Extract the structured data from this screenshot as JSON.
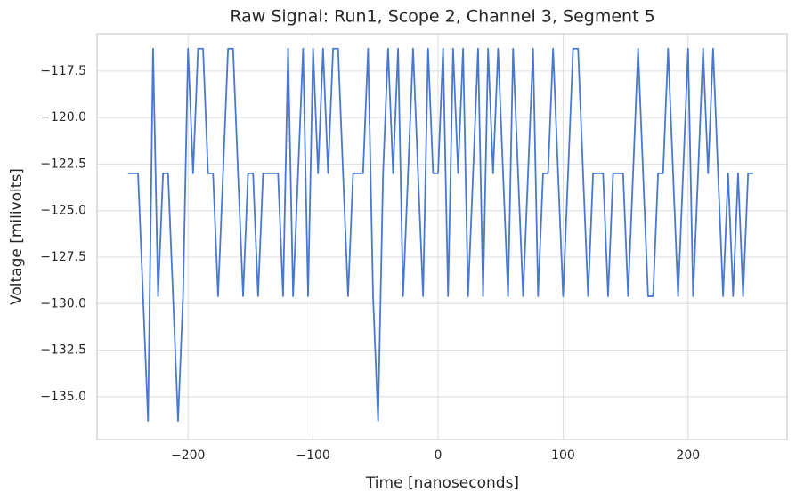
{
  "chart_data": {
    "type": "line",
    "title": "Raw Signal: Run1, Scope 2, Channel 3, Segment 5",
    "x_label": "Time [nanoseconds]",
    "y_label": "Voltage [milivolts]",
    "x": [
      -248,
      -244,
      -240,
      -236,
      -232,
      -228,
      -224,
      -220,
      -216,
      -212,
      -208,
      -204,
      -200,
      -196,
      -192,
      -188,
      -184,
      -180,
      -176,
      -172,
      -168,
      -164,
      -160,
      -156,
      -152,
      -148,
      -144,
      -140,
      -136,
      -132,
      -128,
      -124,
      -120,
      -116,
      -112,
      -108,
      -104,
      -100,
      -96,
      -92,
      -88,
      -84,
      -80,
      -76,
      -72,
      -68,
      -64,
      -60,
      -56,
      -52,
      -48,
      -44,
      -40,
      -36,
      -32,
      -28,
      -24,
      -20,
      -16,
      -12,
      -8,
      -4,
      0,
      4,
      8,
      12,
      16,
      20,
      24,
      28,
      32,
      36,
      40,
      44,
      48,
      52,
      56,
      60,
      64,
      68,
      72,
      76,
      80,
      84,
      88,
      92,
      96,
      100,
      104,
      108,
      112,
      116,
      120,
      124,
      128,
      132,
      136,
      140,
      144,
      148,
      152,
      156,
      160,
      164,
      168,
      172,
      176,
      180,
      184,
      188,
      192,
      196,
      200,
      204,
      208,
      212,
      216,
      220,
      224,
      228,
      232,
      236,
      240,
      244,
      248,
      252
    ],
    "series": [
      {
        "name": "signal",
        "color": "#4878d0",
        "values": [
          -123,
          -123,
          -123,
          -129.6,
          -136.3,
          -116.3,
          -129.6,
          -123,
          -123,
          -129.6,
          -136.3,
          -129.6,
          -116.3,
          -123,
          -116.3,
          -116.3,
          -123,
          -123,
          -129.6,
          -123,
          -116.3,
          -116.3,
          -123,
          -129.6,
          -123,
          -123,
          -129.6,
          -123,
          -123,
          -123,
          -123,
          -129.6,
          -116.3,
          -129.6,
          -123,
          -116.3,
          -129.6,
          -116.3,
          -123,
          -116.3,
          -123,
          -116.3,
          -116.3,
          -123,
          -129.6,
          -123,
          -123,
          -123,
          -116.3,
          -129.6,
          -136.3,
          -123,
          -116.3,
          -123,
          -116.3,
          -129.6,
          -123,
          -116.3,
          -123,
          -129.6,
          -116.3,
          -123,
          -123,
          -116.3,
          -129.6,
          -116.3,
          -123,
          -116.3,
          -129.6,
          -123,
          -116.3,
          -129.6,
          -116.3,
          -123,
          -116.3,
          -123,
          -129.6,
          -116.3,
          -123,
          -129.6,
          -123,
          -116.3,
          -129.6,
          -123,
          -123,
          -116.3,
          -123,
          -129.6,
          -123,
          -116.3,
          -116.3,
          -123,
          -129.6,
          -123,
          -123,
          -123,
          -129.6,
          -123,
          -123,
          -123,
          -129.6,
          -123,
          -116.3,
          -123,
          -129.6,
          -129.6,
          -123,
          -123,
          -116.3,
          -123,
          -129.6,
          -123,
          -116.3,
          -129.6,
          -123,
          -116.3,
          -123,
          -116.3,
          -123,
          -129.6,
          -123,
          -129.6,
          -123,
          -129.6,
          -123,
          -123
        ]
      }
    ],
    "xlim": [
      -272.8,
      279.2
    ],
    "ylim": [
      -137.3,
      -115.5
    ],
    "xticks": [
      {
        "value": -200,
        "label": "−200"
      },
      {
        "value": -100,
        "label": "−100"
      },
      0,
      100,
      200
    ],
    "yticks": [
      {
        "value": -135,
        "label": "−135.0"
      },
      {
        "value": -132.5,
        "label": "−132.5"
      },
      {
        "value": -130,
        "label": "−130.0"
      },
      {
        "value": -127.5,
        "label": "−127.5"
      },
      {
        "value": -125,
        "label": "−125.0"
      },
      {
        "value": -122.5,
        "label": "−122.5"
      },
      {
        "value": -120,
        "label": "−120.0"
      },
      {
        "value": -117.5,
        "label": "−117.5"
      }
    ],
    "grid": true
  }
}
